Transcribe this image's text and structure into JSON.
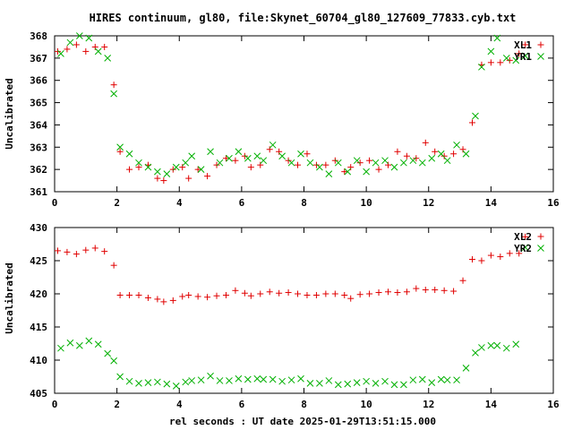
{
  "chart_data": [
    {
      "type": "scatter",
      "title": "HIRES continuum, gl80, file:Skynet_60704_gl80_127609_77833.cyb.txt",
      "xlabel": "",
      "ylabel": "Uncalibrated",
      "xlim": [
        0,
        16
      ],
      "ylim": [
        361,
        368
      ],
      "x_ticks": [
        0,
        2,
        4,
        6,
        8,
        10,
        12,
        14,
        16
      ],
      "y_ticks": [
        361,
        362,
        363,
        364,
        365,
        366,
        367,
        368
      ],
      "grid": false,
      "legend_position": "top-right",
      "series": [
        {
          "name": "XL1",
          "marker": "plus",
          "color": "#e00000",
          "x": [
            0.1,
            0.4,
            0.7,
            1.0,
            1.3,
            1.6,
            1.9,
            2.1,
            2.4,
            2.7,
            3.0,
            3.3,
            3.5,
            3.8,
            4.1,
            4.3,
            4.6,
            4.9,
            5.2,
            5.5,
            5.8,
            6.1,
            6.3,
            6.6,
            6.9,
            7.2,
            7.5,
            7.8,
            8.1,
            8.4,
            8.7,
            9.0,
            9.3,
            9.5,
            9.8,
            10.1,
            10.4,
            10.7,
            11.0,
            11.3,
            11.6,
            11.9,
            12.2,
            12.5,
            12.8,
            13.1,
            13.4,
            13.7,
            14.0,
            14.3,
            14.6,
            14.9,
            15.1
          ],
          "y": [
            367.3,
            367.4,
            367.6,
            367.3,
            367.5,
            367.5,
            365.8,
            362.8,
            362.0,
            362.1,
            362.2,
            361.6,
            361.5,
            362.0,
            362.1,
            361.6,
            362.0,
            361.7,
            362.2,
            362.5,
            362.4,
            362.6,
            362.1,
            362.2,
            362.9,
            362.8,
            362.4,
            362.2,
            362.7,
            362.2,
            362.2,
            362.4,
            361.9,
            362.1,
            362.3,
            362.4,
            362.0,
            362.2,
            362.8,
            362.6,
            362.5,
            363.2,
            362.8,
            362.6,
            362.7,
            362.9,
            364.1,
            366.7,
            366.8,
            366.8,
            366.9,
            367.2,
            367.6
          ]
        },
        {
          "name": "YR1",
          "marker": "cross",
          "color": "#00b000",
          "x": [
            0.2,
            0.5,
            0.8,
            1.1,
            1.4,
            1.7,
            1.9,
            2.1,
            2.4,
            2.7,
            3.0,
            3.3,
            3.6,
            3.9,
            4.2,
            4.4,
            4.7,
            5.0,
            5.3,
            5.6,
            5.9,
            6.2,
            6.5,
            6.7,
            7.0,
            7.3,
            7.6,
            7.9,
            8.2,
            8.5,
            8.8,
            9.1,
            9.4,
            9.7,
            10.0,
            10.3,
            10.6,
            10.9,
            11.2,
            11.5,
            11.8,
            12.1,
            12.4,
            12.6,
            12.9,
            13.2,
            13.5,
            13.7,
            14.0,
            14.2,
            14.5,
            14.8,
            15.1
          ],
          "y": [
            367.2,
            367.7,
            368.0,
            367.9,
            367.3,
            367.0,
            365.4,
            363.0,
            362.7,
            362.3,
            362.1,
            361.9,
            361.8,
            362.1,
            362.3,
            362.6,
            362.0,
            362.8,
            362.3,
            362.5,
            362.8,
            362.5,
            362.6,
            362.4,
            363.1,
            362.6,
            362.3,
            362.7,
            362.3,
            362.1,
            361.8,
            362.3,
            361.9,
            362.4,
            361.9,
            362.3,
            362.4,
            362.1,
            362.3,
            362.4,
            362.3,
            362.5,
            362.7,
            362.4,
            363.1,
            362.7,
            364.4,
            366.6,
            367.3,
            367.9,
            367.0,
            366.9,
            367.1
          ]
        }
      ]
    },
    {
      "type": "scatter",
      "title": "",
      "xlabel": "rel seconds : UT date 2025-01-29T13:51:15.000",
      "ylabel": "Uncalibrated",
      "xlim": [
        0,
        16
      ],
      "ylim": [
        405,
        430
      ],
      "x_ticks": [
        0,
        2,
        4,
        6,
        8,
        10,
        12,
        14,
        16
      ],
      "y_ticks": [
        405,
        410,
        415,
        420,
        425,
        430
      ],
      "grid": false,
      "legend_position": "top-right",
      "series": [
        {
          "name": "XL2",
          "marker": "plus",
          "color": "#e00000",
          "x": [
            0.1,
            0.4,
            0.7,
            1.0,
            1.3,
            1.6,
            1.9,
            2.1,
            2.4,
            2.7,
            3.0,
            3.3,
            3.5,
            3.8,
            4.1,
            4.3,
            4.6,
            4.9,
            5.2,
            5.5,
            5.8,
            6.1,
            6.3,
            6.6,
            6.9,
            7.2,
            7.5,
            7.8,
            8.1,
            8.4,
            8.7,
            9.0,
            9.3,
            9.5,
            9.8,
            10.1,
            10.4,
            10.7,
            11.0,
            11.3,
            11.6,
            11.9,
            12.2,
            12.5,
            12.8,
            13.1,
            13.4,
            13.7,
            14.0,
            14.3,
            14.6,
            14.9,
            15.1
          ],
          "y": [
            426.5,
            426.3,
            426.0,
            426.6,
            426.9,
            426.4,
            424.3,
            419.8,
            419.8,
            419.8,
            419.4,
            419.2,
            418.8,
            419.0,
            419.6,
            419.8,
            419.6,
            419.5,
            419.7,
            419.8,
            420.5,
            420.1,
            419.7,
            420.0,
            420.3,
            420.1,
            420.2,
            420.0,
            419.8,
            419.8,
            420.0,
            420.0,
            419.8,
            419.3,
            419.9,
            420.0,
            420.2,
            420.3,
            420.2,
            420.3,
            420.8,
            420.6,
            420.6,
            420.5,
            420.4,
            422.0,
            425.2,
            425.0,
            425.8,
            425.6,
            426.1,
            426.1,
            428.6
          ]
        },
        {
          "name": "YR2",
          "marker": "cross",
          "color": "#00b000",
          "x": [
            0.2,
            0.5,
            0.8,
            1.1,
            1.4,
            1.7,
            1.9,
            2.1,
            2.4,
            2.7,
            3.0,
            3.3,
            3.6,
            3.9,
            4.2,
            4.4,
            4.7,
            5.0,
            5.3,
            5.6,
            5.9,
            6.2,
            6.5,
            6.7,
            7.0,
            7.3,
            7.6,
            7.9,
            8.2,
            8.5,
            8.8,
            9.1,
            9.4,
            9.7,
            10.0,
            10.3,
            10.6,
            10.9,
            11.2,
            11.5,
            11.8,
            12.1,
            12.4,
            12.6,
            12.9,
            13.2,
            13.5,
            13.7,
            14.0,
            14.2,
            14.5,
            14.8,
            15.1
          ],
          "y": [
            411.8,
            412.6,
            412.2,
            412.9,
            412.4,
            411.0,
            409.9,
            407.5,
            406.8,
            406.5,
            406.6,
            406.7,
            406.4,
            406.1,
            406.7,
            406.9,
            407.0,
            407.6,
            406.9,
            406.9,
            407.2,
            407.1,
            407.2,
            407.1,
            407.1,
            406.8,
            407.0,
            407.2,
            406.5,
            406.5,
            406.9,
            406.3,
            406.4,
            406.6,
            406.8,
            406.5,
            406.8,
            406.3,
            406.3,
            407.0,
            407.1,
            406.6,
            407.1,
            407.0,
            407.0,
            408.8,
            411.1,
            411.9,
            412.2,
            412.2,
            411.8,
            412.4,
            427.0
          ]
        }
      ]
    }
  ]
}
